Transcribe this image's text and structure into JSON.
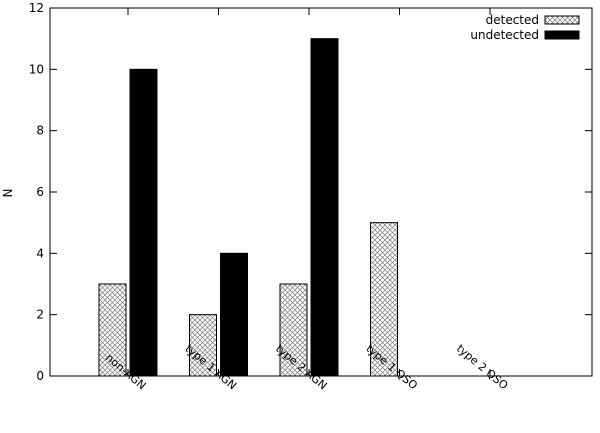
{
  "chart_data": {
    "type": "bar",
    "categories": [
      "non-AGN",
      "type 1 AGN",
      "type 2 AGN",
      "type 1 QSO",
      "type 2 QSO"
    ],
    "series": [
      {
        "name": "detected",
        "values": [
          3,
          2,
          3,
          5,
          0
        ],
        "pattern": "crosshatch"
      },
      {
        "name": "undetected",
        "values": [
          10,
          4,
          11,
          0,
          0
        ],
        "color": "#000000"
      }
    ],
    "title": "",
    "xlabel": "",
    "ylabel": "N",
    "ylim": [
      0,
      12
    ],
    "yticks": [
      0,
      2,
      4,
      6,
      8,
      10,
      12
    ],
    "grid": false,
    "legend_position": "top-right",
    "xtick_label_rotation": "diagonal"
  }
}
